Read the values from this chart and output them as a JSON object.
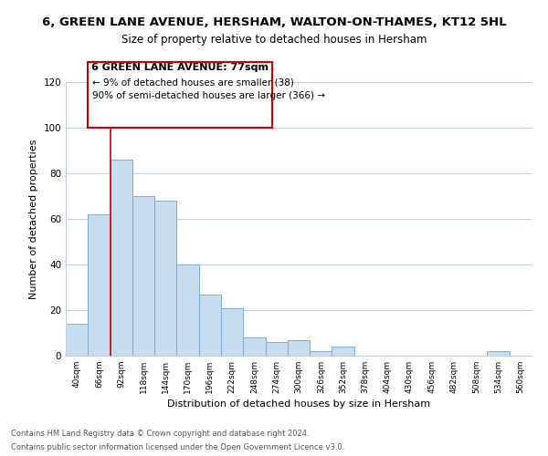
{
  "title": "6, GREEN LANE AVENUE, HERSHAM, WALTON-ON-THAMES, KT12 5HL",
  "subtitle": "Size of property relative to detached houses in Hersham",
  "xlabel": "Distribution of detached houses by size in Hersham",
  "ylabel": "Number of detached properties",
  "bar_labels": [
    "40sqm",
    "66sqm",
    "92sqm",
    "118sqm",
    "144sqm",
    "170sqm",
    "196sqm",
    "222sqm",
    "248sqm",
    "274sqm",
    "300sqm",
    "326sqm",
    "352sqm",
    "378sqm",
    "404sqm",
    "430sqm",
    "456sqm",
    "482sqm",
    "508sqm",
    "534sqm",
    "560sqm"
  ],
  "bar_values": [
    14,
    62,
    86,
    70,
    68,
    40,
    27,
    21,
    8,
    6,
    7,
    2,
    4,
    0,
    0,
    0,
    0,
    0,
    0,
    2,
    0
  ],
  "bar_color": "#c8dcf0",
  "bar_edge_color": "#7aafd4",
  "ylim": [
    0,
    120
  ],
  "yticks": [
    0,
    20,
    40,
    60,
    80,
    100,
    120
  ],
  "vline_x": 1.5,
  "vline_color": "#cc0000",
  "annotation_title": "6 GREEN LANE AVENUE: 77sqm",
  "annotation_line1": "← 9% of detached houses are smaller (38)",
  "annotation_line2": "90% of semi-detached houses are larger (366) →",
  "annotation_box_color": "#ffffff",
  "annotation_box_edge": "#cc0000",
  "footer1": "Contains HM Land Registry data © Crown copyright and database right 2024.",
  "footer2": "Contains public sector information licensed under the Open Government Licence v3.0.",
  "background_color": "#ffffff",
  "grid_color": "#c0d0e0"
}
